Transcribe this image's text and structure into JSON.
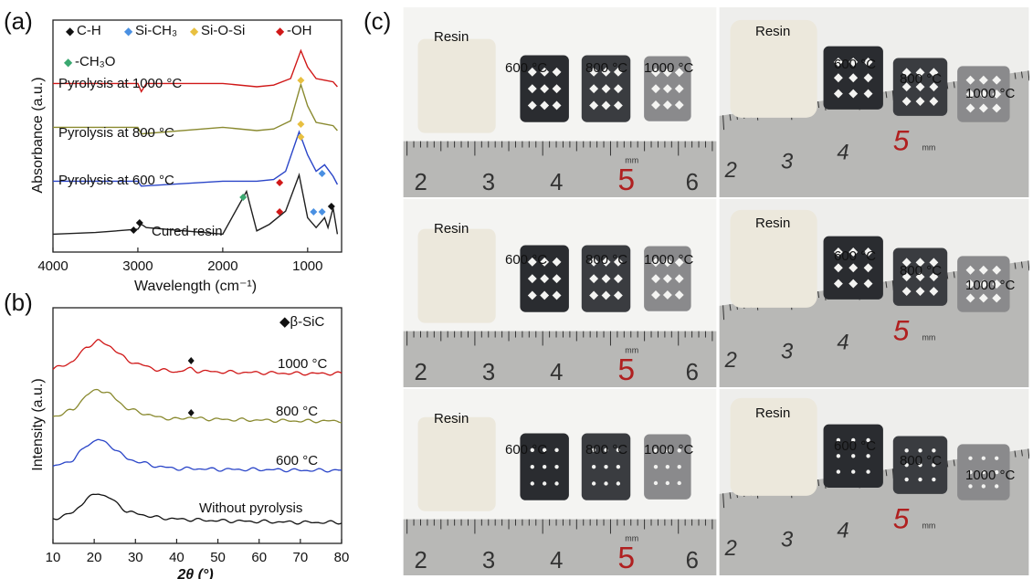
{
  "panels": {
    "a": "(a)",
    "b": "(b)",
    "c": "(c)"
  },
  "ftir": {
    "legend": [
      {
        "symbol": "◆",
        "color": "#111111",
        "label": "C-H"
      },
      {
        "symbol": "◆",
        "color": "#4a90e2",
        "label": "Si-CH₃"
      },
      {
        "symbol": "◆",
        "color": "#e8c040",
        "label": "Si-O-Si"
      },
      {
        "symbol": "◆",
        "color": "#d01818",
        "label": "-OH"
      },
      {
        "symbol": "◆",
        "color": "#3aa870",
        "label": "-CH₃O"
      }
    ],
    "curve_labels": [
      "Pyrolysis at 1000 °C",
      "Pyrolysis at 800 °C",
      "Pyrolysis at 600 °C",
      "Cured resin"
    ],
    "xlabel": "Wavelength (cm⁻¹)",
    "ylabel": "Absorbance (a.u.)",
    "xticks": [
      "4000",
      "3000",
      "2000",
      "1000"
    ]
  },
  "xrd": {
    "legend": "◆β-SiC",
    "curve_labels": [
      "1000 °C",
      "800 °C",
      "600 °C",
      "Without pyrolysis"
    ],
    "xlabel": "2θ (°)",
    "ylabel": "Intensity (a.u.)",
    "xticks": [
      "10",
      "20",
      "30",
      "40",
      "50",
      "60",
      "70",
      "80"
    ]
  },
  "chart_data": [
    {
      "type": "line",
      "title": "",
      "xlabel": "Wavelength (cm⁻¹)",
      "ylabel": "Absorbance (a.u.)",
      "xlim": [
        4000,
        600
      ],
      "series": [
        {
          "name": "Pyrolysis at 1000 °C",
          "x": [
            4000,
            3000,
            2960,
            2900,
            2000,
            1600,
            1400,
            1200,
            1080,
            1000,
            900,
            800,
            700,
            650
          ],
          "y": [
            0.02,
            0.02,
            -0.03,
            0.02,
            0.02,
            0.0,
            0.01,
            0.05,
            0.22,
            0.12,
            0.05,
            0.04,
            0.03,
            0.0
          ]
        },
        {
          "name": "Pyrolysis at 800 °C",
          "x": [
            4000,
            3000,
            2960,
            2000,
            1600,
            1400,
            1200,
            1080,
            1000,
            900,
            800,
            700,
            650
          ],
          "y": [
            0.02,
            0.02,
            -0.02,
            0.02,
            0.0,
            0.01,
            0.06,
            0.28,
            0.15,
            0.05,
            0.04,
            0.03,
            0.0
          ]
        },
        {
          "name": "Pyrolysis at 600 °C",
          "x": [
            4000,
            3000,
            2960,
            2000,
            1600,
            1400,
            1260,
            1100,
            1000,
            900,
            800,
            700,
            650
          ],
          "y": [
            0.02,
            0.02,
            -0.01,
            0.02,
            0.02,
            0.03,
            0.08,
            0.32,
            0.18,
            0.08,
            0.12,
            0.05,
            0.0
          ]
        },
        {
          "name": "Cured resin",
          "x": [
            4000,
            3500,
            3000,
            2960,
            2900,
            2000,
            1720,
            1600,
            1450,
            1260,
            1100,
            1000,
            900,
            800,
            760,
            700,
            650
          ],
          "y": [
            0.02,
            0.03,
            0.05,
            0.08,
            0.06,
            0.02,
            0.28,
            0.04,
            0.08,
            0.16,
            0.38,
            0.12,
            0.06,
            0.12,
            0.06,
            0.18,
            0.02
          ]
        }
      ]
    },
    {
      "type": "line",
      "title": "",
      "xlabel": "2θ (°)",
      "ylabel": "Intensity (a.u.)",
      "xlim": [
        10,
        80
      ],
      "series": [
        {
          "name": "1000 °C",
          "x": [
            10,
            15,
            18,
            21,
            24,
            28,
            35,
            40,
            43.5,
            45,
            50,
            60,
            70,
            80
          ],
          "y": [
            0.05,
            0.15,
            0.32,
            0.4,
            0.33,
            0.16,
            0.05,
            0.02,
            0.06,
            0.03,
            0.02,
            0.01,
            0.0,
            0.0
          ]
        },
        {
          "name": "800 °C",
          "x": [
            10,
            15,
            18,
            21,
            24,
            28,
            35,
            40,
            43.5,
            45,
            50,
            60,
            70,
            80
          ],
          "y": [
            0.05,
            0.14,
            0.31,
            0.39,
            0.32,
            0.15,
            0.05,
            0.02,
            0.05,
            0.03,
            0.02,
            0.01,
            0.0,
            0.0
          ]
        },
        {
          "name": "600 °C",
          "x": [
            10,
            15,
            18,
            21,
            24,
            28,
            35,
            40,
            45,
            50,
            60,
            70,
            80
          ],
          "y": [
            0.04,
            0.13,
            0.3,
            0.38,
            0.3,
            0.14,
            0.05,
            0.02,
            0.02,
            0.01,
            0.01,
            0.0,
            0.0
          ]
        },
        {
          "name": "Without pyrolysis",
          "x": [
            10,
            15,
            18,
            21,
            24,
            28,
            35,
            40,
            45,
            50,
            60,
            70,
            80
          ],
          "y": [
            0.04,
            0.12,
            0.28,
            0.36,
            0.29,
            0.13,
            0.06,
            0.04,
            0.03,
            0.02,
            0.01,
            0.0,
            0.0
          ]
        }
      ],
      "markers": [
        {
          "label": "β-SiC",
          "x": 43.5,
          "series": "1000 °C"
        },
        {
          "label": "β-SiC",
          "x": 43.5,
          "series": "800 °C"
        }
      ]
    }
  ],
  "photos": {
    "resin_label": "Resin",
    "temps": [
      "600 °C",
      "800 °C",
      "1000 °C"
    ],
    "ruler_numbers_straight": [
      "2",
      "3",
      "4",
      "5",
      "6"
    ],
    "ruler_numbers_angled": [
      "2",
      "3",
      "4",
      "5"
    ],
    "mm_label": "mm",
    "colors": {
      "resin": "#ece8dc",
      "s600": "#2a2c30",
      "s800": "#3a3c40",
      "s1000": "#8a8a8c",
      "ruler": "#b8b8b6",
      "five": "#b02020"
    }
  }
}
